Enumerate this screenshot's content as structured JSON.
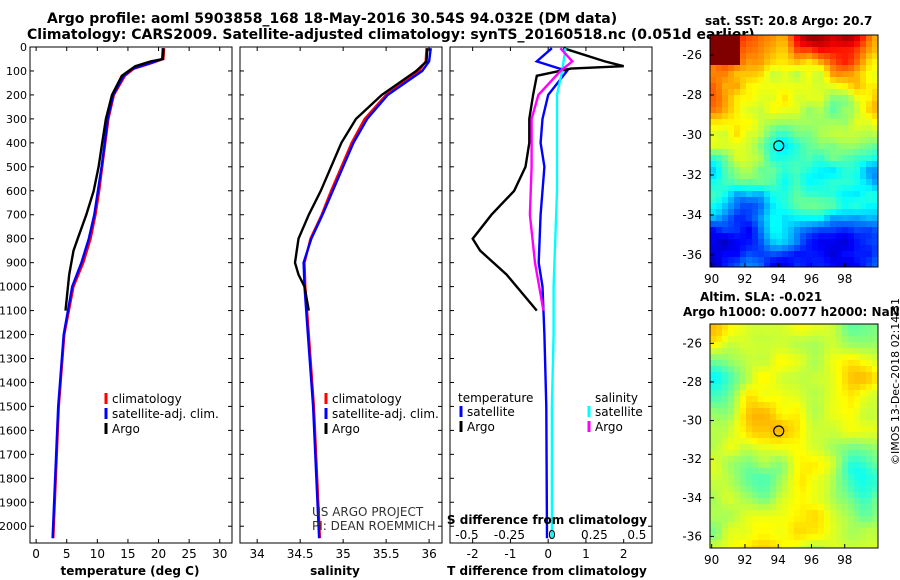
{
  "title": {
    "line1": "Argo profile: aoml 5903858_168 18-May-2016 30.54S 94.032E (DM data)",
    "line2": "Climatology: CARS2009. Satellite-adjusted climatology: synTS_20160518.nc (0.051d earlier)"
  },
  "colors": {
    "climatology": "#ff0000",
    "satellite": "#0000ff",
    "argo": "#000000",
    "sal_satellite": "#00ffff",
    "sal_argo": "#ff00ff"
  },
  "chart_data": [
    {
      "type": "line",
      "name": "temperature-profile",
      "xlabel": "temperature (deg C)",
      "ylabel": "",
      "xlim": [
        -1,
        32
      ],
      "ylim": [
        2070,
        0
      ],
      "xticks": [
        0,
        5,
        10,
        15,
        20,
        25,
        30
      ],
      "yticks": [
        0,
        100,
        200,
        300,
        400,
        500,
        600,
        700,
        800,
        900,
        1000,
        1100,
        1200,
        1300,
        1400,
        1500,
        1600,
        1700,
        1800,
        1900,
        2000
      ],
      "legend": [
        "climatology",
        "satellite-adj. clim.",
        "Argo"
      ],
      "series": [
        {
          "name": "climatology",
          "color": "#ff0000",
          "depth": [
            5,
            50,
            70,
            90,
            120,
            200,
            300,
            400,
            500,
            600,
            700,
            800,
            900,
            1000,
            1200,
            1500,
            2050
          ],
          "values": [
            20.9,
            20.8,
            18.5,
            16,
            14.5,
            12.7,
            11.8,
            11.3,
            10.8,
            10.3,
            9.7,
            8.9,
            7.7,
            6.1,
            4.6,
            3.7,
            2.8
          ]
        },
        {
          "name": "satellite-adj. clim.",
          "color": "#0000ff",
          "depth": [
            5,
            50,
            70,
            90,
            120,
            200,
            300,
            400,
            500,
            600,
            700,
            800,
            900,
            1000,
            1200,
            1500,
            2050
          ],
          "values": [
            20.7,
            20.6,
            18.3,
            15.8,
            14.3,
            12.6,
            11.7,
            11.2,
            10.7,
            10.1,
            9.5,
            8.6,
            7.4,
            5.9,
            4.5,
            3.6,
            2.7
          ]
        },
        {
          "name": "Argo",
          "color": "#000000",
          "depth": [
            5,
            50,
            60,
            80,
            120,
            200,
            300,
            400,
            500,
            600,
            700,
            800,
            850,
            950,
            1100
          ],
          "values": [
            20.8,
            20.7,
            18.7,
            16.2,
            14.0,
            12.4,
            11.4,
            10.8,
            10.2,
            9.4,
            8.2,
            6.8,
            6.1,
            5.4,
            4.8
          ]
        }
      ]
    },
    {
      "type": "line",
      "name": "salinity-profile",
      "xlabel": "salinity",
      "xlim": [
        33.8,
        36.15
      ],
      "ylim": [
        2070,
        0
      ],
      "xticks": [
        34,
        34.5,
        35,
        35.5,
        36
      ],
      "legend": [
        "climatology",
        "satellite-adj. clim.",
        "Argo"
      ],
      "series": [
        {
          "name": "climatology",
          "color": "#ff0000",
          "depth": [
            5,
            60,
            100,
            200,
            300,
            400,
            500,
            600,
            700,
            800,
            900,
            1000,
            1200,
            1500,
            2050
          ],
          "values": [
            35.97,
            35.96,
            35.88,
            35.5,
            35.25,
            35.1,
            34.98,
            34.86,
            34.75,
            34.62,
            34.55,
            34.56,
            34.6,
            34.66,
            34.73
          ]
        },
        {
          "name": "satellite-adj. clim.",
          "color": "#0000ff",
          "depth": [
            5,
            60,
            100,
            200,
            300,
            400,
            500,
            600,
            700,
            800,
            900,
            1000,
            1200,
            1500,
            2050
          ],
          "values": [
            36.02,
            36.0,
            35.92,
            35.52,
            35.28,
            35.12,
            35.0,
            34.88,
            34.76,
            34.63,
            34.54,
            34.55,
            34.59,
            34.65,
            34.72
          ]
        },
        {
          "name": "Argo",
          "color": "#000000",
          "depth": [
            5,
            60,
            100,
            200,
            300,
            400,
            500,
            600,
            700,
            800,
            900,
            950,
            1000,
            1100
          ],
          "values": [
            35.98,
            35.97,
            35.85,
            35.45,
            35.15,
            34.98,
            34.86,
            34.74,
            34.6,
            34.48,
            34.44,
            34.48,
            34.55,
            34.6
          ]
        }
      ]
    },
    {
      "type": "line",
      "name": "difference-profile",
      "xlabel": "T difference from climatology",
      "xlim": [
        -2.6,
        2.75
      ],
      "ylim": [
        2070,
        0
      ],
      "xticks": [
        -2,
        -1,
        0,
        1,
        2
      ],
      "sticks_label": "S difference from climatology",
      "sticks": [
        "-0.5",
        "-0.25",
        "0",
        "0.25",
        "0.5"
      ],
      "sticks_values": [
        -0.5,
        -0.25,
        0,
        0.25,
        0.5
      ],
      "legend_left_title": "temperature",
      "legend_right_title": "salinity",
      "legend_left": [
        "satellite",
        "Argo"
      ],
      "legend_right": [
        "satellite",
        "Argo"
      ],
      "series": [
        {
          "name": "temperature satellite",
          "color": "#0000ff",
          "depth": [
            5,
            60,
            100,
            200,
            300,
            400,
            500,
            700,
            900,
            1000,
            1200,
            1500,
            2050
          ],
          "values": [
            0.1,
            -0.3,
            0.5,
            0.0,
            -0.15,
            -0.2,
            -0.1,
            -0.2,
            -0.25,
            -0.15,
            -0.1,
            -0.05,
            -0.03
          ]
        },
        {
          "name": "temperature Argo",
          "color": "#000000",
          "depth": [
            5,
            60,
            80,
            90,
            120,
            200,
            300,
            400,
            500,
            600,
            700,
            800,
            850,
            950,
            1100
          ],
          "values": [
            0.4,
            1.5,
            2.0,
            0.6,
            -0.3,
            -0.4,
            -0.5,
            -0.5,
            -0.6,
            -0.9,
            -1.5,
            -2.0,
            -1.8,
            -1.1,
            -0.3
          ]
        },
        {
          "name": "salinity satellite",
          "color": "#00ffff",
          "depth": [
            5,
            100,
            200,
            400,
            600,
            800,
            1000,
            1200,
            1500,
            2050
          ],
          "values": [
            0.08,
            0.06,
            0.03,
            0.03,
            0.03,
            0.02,
            0.01,
            0.01,
            0.0,
            0.0
          ]
        },
        {
          "name": "salinity Argo",
          "color": "#ff00ff",
          "depth": [
            5,
            60,
            100,
            200,
            300,
            500,
            700,
            900,
            1100
          ],
          "values": [
            0.05,
            0.12,
            0.05,
            -0.08,
            -0.12,
            -0.12,
            -0.13,
            -0.1,
            -0.05
          ]
        }
      ]
    }
  ],
  "labels": {
    "legend_climatology": "climatology",
    "legend_satellite_adj": "satellite-adj. clim.",
    "legend_argo": "Argo",
    "diff_temperature": "temperature",
    "diff_salinity": "salinity",
    "diff_satellite": "satellite",
    "diff_argo": "Argo",
    "s_diff_label": "S difference from climatology"
  },
  "watermark": {
    "line1": "US ARGO PROJECT",
    "line2": "PI: DEAN ROEMMICH"
  },
  "maps": {
    "sst_title": "sat. SST: 20.8 Argo: 20.7",
    "altim_title": "Altim. SLA: -0.021",
    "altim_subtitle": "Argo h1000: 0.0077 h2000: NaN",
    "lon_ticks": [
      "90",
      "92",
      "94",
      "96",
      "98"
    ],
    "lon_ticks_values": [
      90,
      92,
      94,
      96,
      98
    ],
    "lat_ticks": [
      "-26",
      "-28",
      "-30",
      "-32",
      "-34",
      "-36"
    ],
    "lat_ticks_values": [
      -26,
      -28,
      -30,
      -32,
      -34,
      -36
    ],
    "lon_range": [
      89.9,
      100.0
    ],
    "lat_range": [
      -25.0,
      -36.6
    ],
    "argo_lon": 94.032,
    "argo_lat": -30.54
  },
  "imos": "©IMOS 13-Dec-2018 02:14:31"
}
